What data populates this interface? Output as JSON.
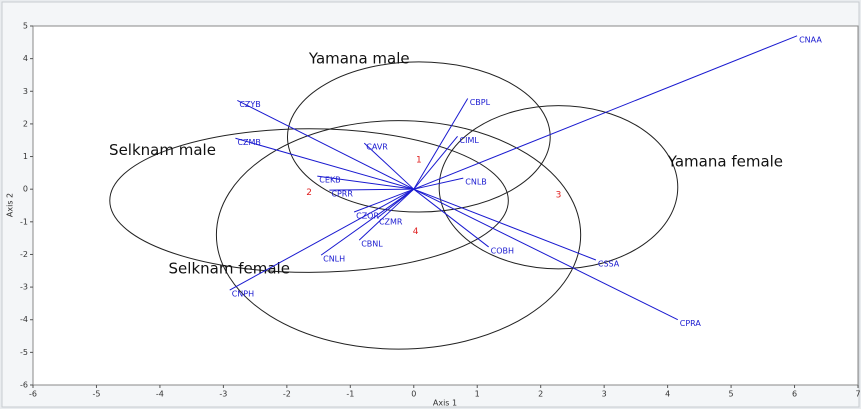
{
  "chart_data": {
    "type": "biplot",
    "x_label": "Axis 1",
    "y_label": "Axis 2",
    "xlim": [
      -6,
      7
    ],
    "xticks": [
      -6,
      -5,
      -4,
      -3,
      -2,
      -1,
      0,
      1,
      2,
      3,
      4,
      5,
      6,
      7
    ],
    "ylim": [
      -6,
      5
    ],
    "yticks": [
      -6,
      -5,
      -4,
      -3,
      -2,
      -1,
      0,
      1,
      2,
      3,
      4,
      5
    ],
    "vector_color": "#1a1ad0",
    "vectors": [
      {
        "name": "CNAA",
        "x": 6.04,
        "y": 4.7
      },
      {
        "name": "CZYB",
        "x": -2.78,
        "y": 2.72
      },
      {
        "name": "CBPL",
        "x": 0.85,
        "y": 2.78
      },
      {
        "name": "CIML",
        "x": 0.69,
        "y": 1.62
      },
      {
        "name": "CZMB",
        "x": -2.81,
        "y": 1.56
      },
      {
        "name": "CAVR",
        "x": -0.78,
        "y": 1.41
      },
      {
        "name": "CNLB",
        "x": 0.78,
        "y": 0.34
      },
      {
        "name": "CEKB",
        "x": -1.52,
        "y": 0.4
      },
      {
        "name": "CPRR",
        "x": -1.33,
        "y": -0.03
      },
      {
        "name": "CZOR",
        "x": -0.94,
        "y": -0.7
      },
      {
        "name": "CZMR",
        "x": -0.58,
        "y": -0.89
      },
      {
        "name": "CBNL",
        "x": -0.86,
        "y": -1.56
      },
      {
        "name": "CNLH",
        "x": -1.46,
        "y": -2.02
      },
      {
        "name": "CNPH",
        "x": -2.9,
        "y": -3.09
      },
      {
        "name": "COBH",
        "x": 1.18,
        "y": -1.77
      },
      {
        "name": "CSSA",
        "x": 2.87,
        "y": -2.17
      },
      {
        "name": "CPRA",
        "x": 4.16,
        "y": -4.0
      }
    ],
    "groups": [
      {
        "name": "Yamana male",
        "cx": 0.08,
        "cy": 1.6,
        "rx": 2.07,
        "ry": 2.3
      },
      {
        "name": "Selknam male",
        "cx": -1.65,
        "cy": -0.35,
        "rx": 3.14,
        "ry": 2.2
      },
      {
        "name": "Yamana female",
        "cx": 2.28,
        "cy": 0.06,
        "rx": 1.88,
        "ry": 2.5
      },
      {
        "name": "Selknam female",
        "cx": -0.24,
        "cy": -1.4,
        "rx": 2.87,
        "ry": 3.5
      }
    ],
    "points": [
      {
        "label": "1",
        "x": 0.08,
        "y": 0.9
      },
      {
        "label": "2",
        "x": -1.65,
        "y": -0.1
      },
      {
        "label": "3",
        "x": 2.28,
        "y": -0.18
      },
      {
        "label": "4",
        "x": 0.03,
        "y": -1.3
      }
    ]
  }
}
